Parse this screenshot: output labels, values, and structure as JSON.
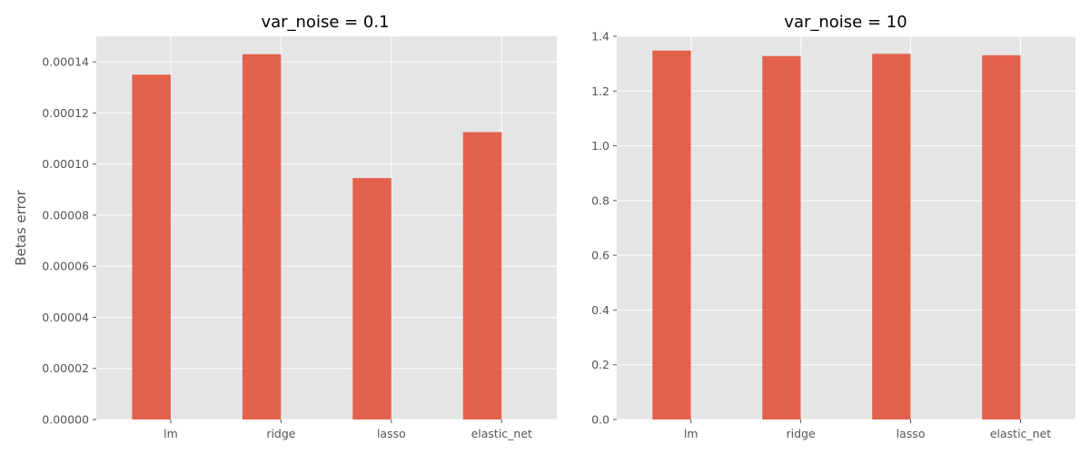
{
  "chart_data": [
    {
      "type": "bar",
      "title": "var_noise = 0.1",
      "xlabel": "",
      "ylabel": "Betas error",
      "categories": [
        "lm",
        "ridge",
        "lasso",
        "elastic_net"
      ],
      "values": [
        0.000135,
        0.000143,
        9.45e-05,
        0.0001125
      ],
      "ylim": [
        0,
        0.00015
      ],
      "yticks": [
        0,
        2e-05,
        4e-05,
        6e-05,
        8e-05,
        0.0001,
        0.00012,
        0.00014
      ],
      "ytick_labels": [
        "0.00000",
        "0.00002",
        "0.00004",
        "0.00006",
        "0.00008",
        "0.00010",
        "0.00012",
        "0.00014"
      ],
      "grid": true,
      "color": "#e24a33"
    },
    {
      "type": "bar",
      "title": "var_noise = 10",
      "xlabel": "",
      "ylabel": "",
      "categories": [
        "lm",
        "ridge",
        "lasso",
        "elastic_net"
      ],
      "values": [
        1.348,
        1.328,
        1.336,
        1.331
      ],
      "ylim": [
        0,
        1.4
      ],
      "yticks": [
        0,
        0.2,
        0.4,
        0.6,
        0.8,
        1.0,
        1.2,
        1.4
      ],
      "ytick_labels": [
        "0.0",
        "0.2",
        "0.4",
        "0.6",
        "0.8",
        "1.0",
        "1.2",
        "1.4"
      ],
      "grid": true,
      "color": "#e24a33"
    }
  ]
}
